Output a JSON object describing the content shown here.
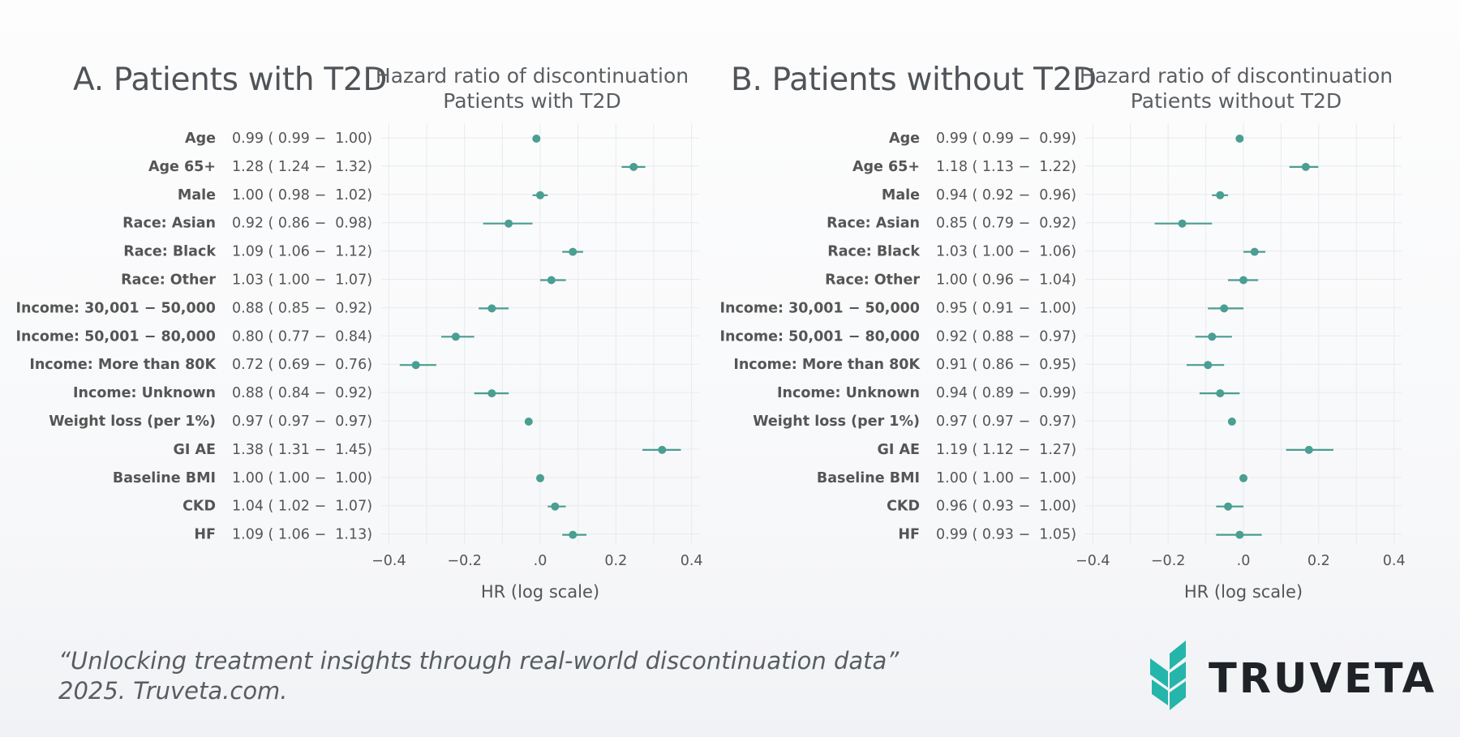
{
  "panels": [
    {
      "title": "A. Patients with T2D",
      "chart_title_line1": "Hazard ratio of discontinuation",
      "chart_title_line2": "Patients with T2D"
    },
    {
      "title": "B. Patients without T2D",
      "chart_title_line1": "Hazard ratio of discontinuation",
      "chart_title_line2": "Patients without T2D"
    }
  ],
  "footer": {
    "quote_line1": "“Unlocking treatment insights through real-world discontinuation data”",
    "quote_line2": "2025. Truveta.com.",
    "brand": "TRUVETA"
  },
  "colors": {
    "point": "#4a9e92",
    "grid": "#e9eaec",
    "text": "#555555"
  },
  "chart_data": [
    {
      "type": "scatter",
      "subtype": "forest-plot",
      "title": "Hazard ratio of discontinuation Patients with T2D",
      "xlabel": "HR (log scale)",
      "xlim": [
        -0.42,
        0.42
      ],
      "xticks": [
        -0.4,
        -0.2,
        0.0,
        0.2,
        0.4
      ],
      "xtick_labels": [
        "−0.4",
        "−0.2",
        ".0",
        "0.2",
        "0.4"
      ],
      "categories": [
        "Age",
        "Age 65+",
        "Male",
        "Race: Asian",
        "Race: Black",
        "Race: Other",
        "Income: 30,001 − 50,000",
        "Income: 50,001 − 80,000",
        "Income: More than 80K",
        "Income: Unknown",
        "Weight loss (per 1%)",
        "GI AE",
        "Baseline BMI",
        "CKD",
        "HF"
      ],
      "hr_labels": [
        "0.99 ( 0.99 −  1.00)",
        "1.28 ( 1.24 −  1.32)",
        "1.00 ( 0.98 −  1.02)",
        "0.92 ( 0.86 −  0.98)",
        "1.09 ( 1.06 −  1.12)",
        "1.03 ( 1.00 −  1.07)",
        "0.88 ( 0.85 −  0.92)",
        "0.80 ( 0.77 −  0.84)",
        "0.72 ( 0.69 −  0.76)",
        "0.88 ( 0.84 −  0.92)",
        "0.97 ( 0.97 −  0.97)",
        "1.38 ( 1.31 −  1.45)",
        "1.00 ( 1.00 −  1.00)",
        "1.04 ( 1.02 −  1.07)",
        "1.09 ( 1.06 −  1.13)"
      ],
      "hr": [
        0.99,
        1.28,
        1.0,
        0.92,
        1.09,
        1.03,
        0.88,
        0.8,
        0.72,
        0.88,
        0.97,
        1.38,
        1.0,
        1.04,
        1.09
      ],
      "lower": [
        0.99,
        1.24,
        0.98,
        0.86,
        1.06,
        1.0,
        0.85,
        0.77,
        0.69,
        0.84,
        0.97,
        1.31,
        1.0,
        1.02,
        1.06
      ],
      "upper": [
        1.0,
        1.32,
        1.02,
        0.98,
        1.12,
        1.07,
        0.92,
        0.84,
        0.76,
        0.92,
        0.97,
        1.45,
        1.0,
        1.07,
        1.13
      ]
    },
    {
      "type": "scatter",
      "subtype": "forest-plot",
      "title": "Hazard ratio of discontinuation Patients without T2D",
      "xlabel": "HR (log scale)",
      "xlim": [
        -0.42,
        0.42
      ],
      "xticks": [
        -0.4,
        -0.2,
        0.0,
        0.2,
        0.4
      ],
      "xtick_labels": [
        "−0.4",
        "−0.2",
        ".0",
        "0.2",
        "0.4"
      ],
      "categories": [
        "Age",
        "Age 65+",
        "Male",
        "Race: Asian",
        "Race: Black",
        "Race: Other",
        "Income: 30,001 − 50,000",
        "Income: 50,001 − 80,000",
        "Income: More than 80K",
        "Income: Unknown",
        "Weight loss (per 1%)",
        "GI AE",
        "Baseline BMI",
        "CKD",
        "HF"
      ],
      "hr_labels": [
        "0.99 ( 0.99 −  0.99)",
        "1.18 ( 1.13 −  1.22)",
        "0.94 ( 0.92 −  0.96)",
        "0.85 ( 0.79 −  0.92)",
        "1.03 ( 1.00 −  1.06)",
        "1.00 ( 0.96 −  1.04)",
        "0.95 ( 0.91 −  1.00)",
        "0.92 ( 0.88 −  0.97)",
        "0.91 ( 0.86 −  0.95)",
        "0.94 ( 0.89 −  0.99)",
        "0.97 ( 0.97 −  0.97)",
        "1.19 ( 1.12 −  1.27)",
        "1.00 ( 1.00 −  1.00)",
        "0.96 ( 0.93 −  1.00)",
        "0.99 ( 0.93 −  1.05)"
      ],
      "hr": [
        0.99,
        1.18,
        0.94,
        0.85,
        1.03,
        1.0,
        0.95,
        0.92,
        0.91,
        0.94,
        0.97,
        1.19,
        1.0,
        0.96,
        0.99
      ],
      "lower": [
        0.99,
        1.13,
        0.92,
        0.79,
        1.0,
        0.96,
        0.91,
        0.88,
        0.86,
        0.89,
        0.97,
        1.12,
        1.0,
        0.93,
        0.93
      ],
      "upper": [
        0.99,
        1.22,
        0.96,
        0.92,
        1.06,
        1.04,
        1.0,
        0.97,
        0.95,
        0.99,
        0.97,
        1.27,
        1.0,
        1.0,
        1.05
      ]
    }
  ]
}
